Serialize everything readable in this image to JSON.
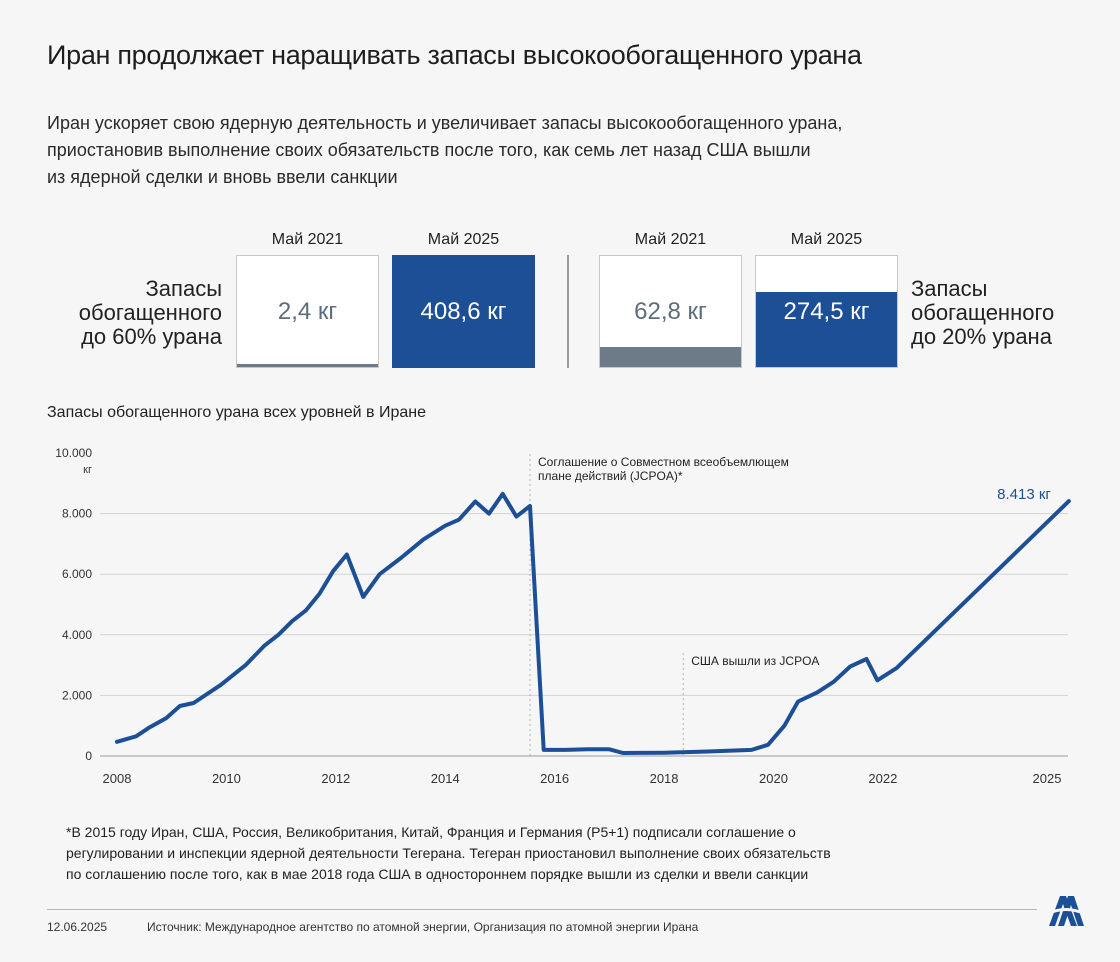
{
  "header": {
    "title": "Иран продолжает наращивать запасы высокообогащенного урана",
    "subtitle_lines": [
      "Иран ускоряет свою ядерную деятельность и увеличивает запасы высокообогащенного урана,",
      "приостановив выполнение своих обязательств после того, как семь лет назад США вышли",
      "из ядерной сделки и вновь ввели санкции"
    ]
  },
  "stats": {
    "left_label_lines": [
      "Запасы",
      "обогащенного",
      "до 60% урана"
    ],
    "right_label_lines": [
      "Запасы",
      "обогащенного",
      "до 20% урана"
    ],
    "boxes": [
      {
        "head": "Май 2021",
        "value": "2,4 кг",
        "fill_fraction": 0.03,
        "fill_color": "#6d7a87",
        "text_color": "#5e6d7c"
      },
      {
        "head": "Май 2025",
        "value": "408,6 кг",
        "fill_fraction": 1.0,
        "fill_color": "#1c4f95",
        "text_color": "#ffffff"
      },
      {
        "head": "Май 2021",
        "value": "62,8 кг",
        "fill_fraction": 0.18,
        "fill_color": "#6d7a87",
        "text_color": "#5e6d7c"
      },
      {
        "head": "Май 2025",
        "value": "274,5 кг",
        "fill_fraction": 0.68,
        "fill_color": "#1c4f95",
        "text_color": "#ffffff"
      }
    ]
  },
  "chart_title": "Запасы обогащенного урана всех уровней в Иране",
  "chart_data": {
    "type": "line",
    "ylim": [
      0,
      10000
    ],
    "y_ticks": [
      {
        "value": 0,
        "label": "0"
      },
      {
        "value": 2000,
        "label": "2.000"
      },
      {
        "value": 4000,
        "label": "4.000"
      },
      {
        "value": 6000,
        "label": "6.000"
      },
      {
        "value": 8000,
        "label": "8.000"
      },
      {
        "value": 10000,
        "label": "10.000"
      }
    ],
    "y_unit": "кг",
    "x_ticks": [
      {
        "value": 2008,
        "label": "2008"
      },
      {
        "value": 2010,
        "label": "2010"
      },
      {
        "value": 2012,
        "label": "2012"
      },
      {
        "value": 2014,
        "label": "2014"
      },
      {
        "value": 2016,
        "label": "2016"
      },
      {
        "value": 2018,
        "label": "2018"
      },
      {
        "value": 2020,
        "label": "2020"
      },
      {
        "value": 2022,
        "label": "2022"
      },
      {
        "value": 2025,
        "label": "2025"
      }
    ],
    "grid": "horizontal",
    "line_color": "#1c4f95",
    "series": [
      {
        "points": [
          [
            2008.0,
            470
          ],
          [
            2008.35,
            650
          ],
          [
            2008.6,
            950
          ],
          [
            2008.9,
            1250
          ],
          [
            2009.15,
            1650
          ],
          [
            2009.4,
            1750
          ],
          [
            2009.9,
            2350
          ],
          [
            2010.35,
            3000
          ],
          [
            2010.7,
            3650
          ],
          [
            2010.95,
            4000
          ],
          [
            2011.2,
            4450
          ],
          [
            2011.45,
            4800
          ],
          [
            2011.7,
            5350
          ],
          [
            2011.95,
            6100
          ],
          [
            2012.2,
            6650
          ],
          [
            2012.5,
            5250
          ],
          [
            2012.8,
            6000
          ],
          [
            2013.2,
            6550
          ],
          [
            2013.6,
            7150
          ],
          [
            2014.0,
            7600
          ],
          [
            2014.25,
            7800
          ],
          [
            2014.55,
            8400
          ],
          [
            2014.8,
            8000
          ],
          [
            2015.05,
            8650
          ],
          [
            2015.3,
            7900
          ],
          [
            2015.55,
            8250
          ],
          [
            2015.8,
            200
          ],
          [
            2016.2,
            200
          ],
          [
            2016.6,
            220
          ],
          [
            2017.0,
            220
          ],
          [
            2017.25,
            100
          ],
          [
            2018.0,
            110
          ],
          [
            2018.8,
            150
          ],
          [
            2019.6,
            200
          ],
          [
            2019.9,
            370
          ],
          [
            2020.2,
            1000
          ],
          [
            2020.45,
            1800
          ],
          [
            2020.8,
            2100
          ],
          [
            2021.1,
            2450
          ],
          [
            2021.4,
            2950
          ],
          [
            2021.7,
            3200
          ],
          [
            2021.9,
            2500
          ],
          [
            2022.25,
            2900
          ],
          [
            2025.4,
            8413
          ]
        ]
      }
    ],
    "annotations": [
      {
        "x": 2015.55,
        "text_lines": [
          "Соглашение о Совместном всеобъемлющем",
          "плане действий (JCPOA)*"
        ]
      },
      {
        "x": 2018.35,
        "text_lines": [
          "США вышли из JCPOA"
        ]
      }
    ],
    "end_label": "8.413 кг"
  },
  "footnote_lines": [
    "*В 2015 году Иран, США, Россия, Великобритания, Китай, Франция и Германия (P5+1) подписали соглашение о",
    "регулировании и инспекции ядерной деятельности Тегерана. Тегеран приостановил выполнение своих обязательств",
    "по соглашению после того, как в мае 2018 года США в одностороннем порядке вышли из сделки и ввели санкции"
  ],
  "footer": {
    "date": "12.06.2025",
    "source": "Источник: Международное агентство по атомной энергии, Организация по атомной энергии Ирана",
    "logo_icon": "anadolu-agency-logo"
  }
}
